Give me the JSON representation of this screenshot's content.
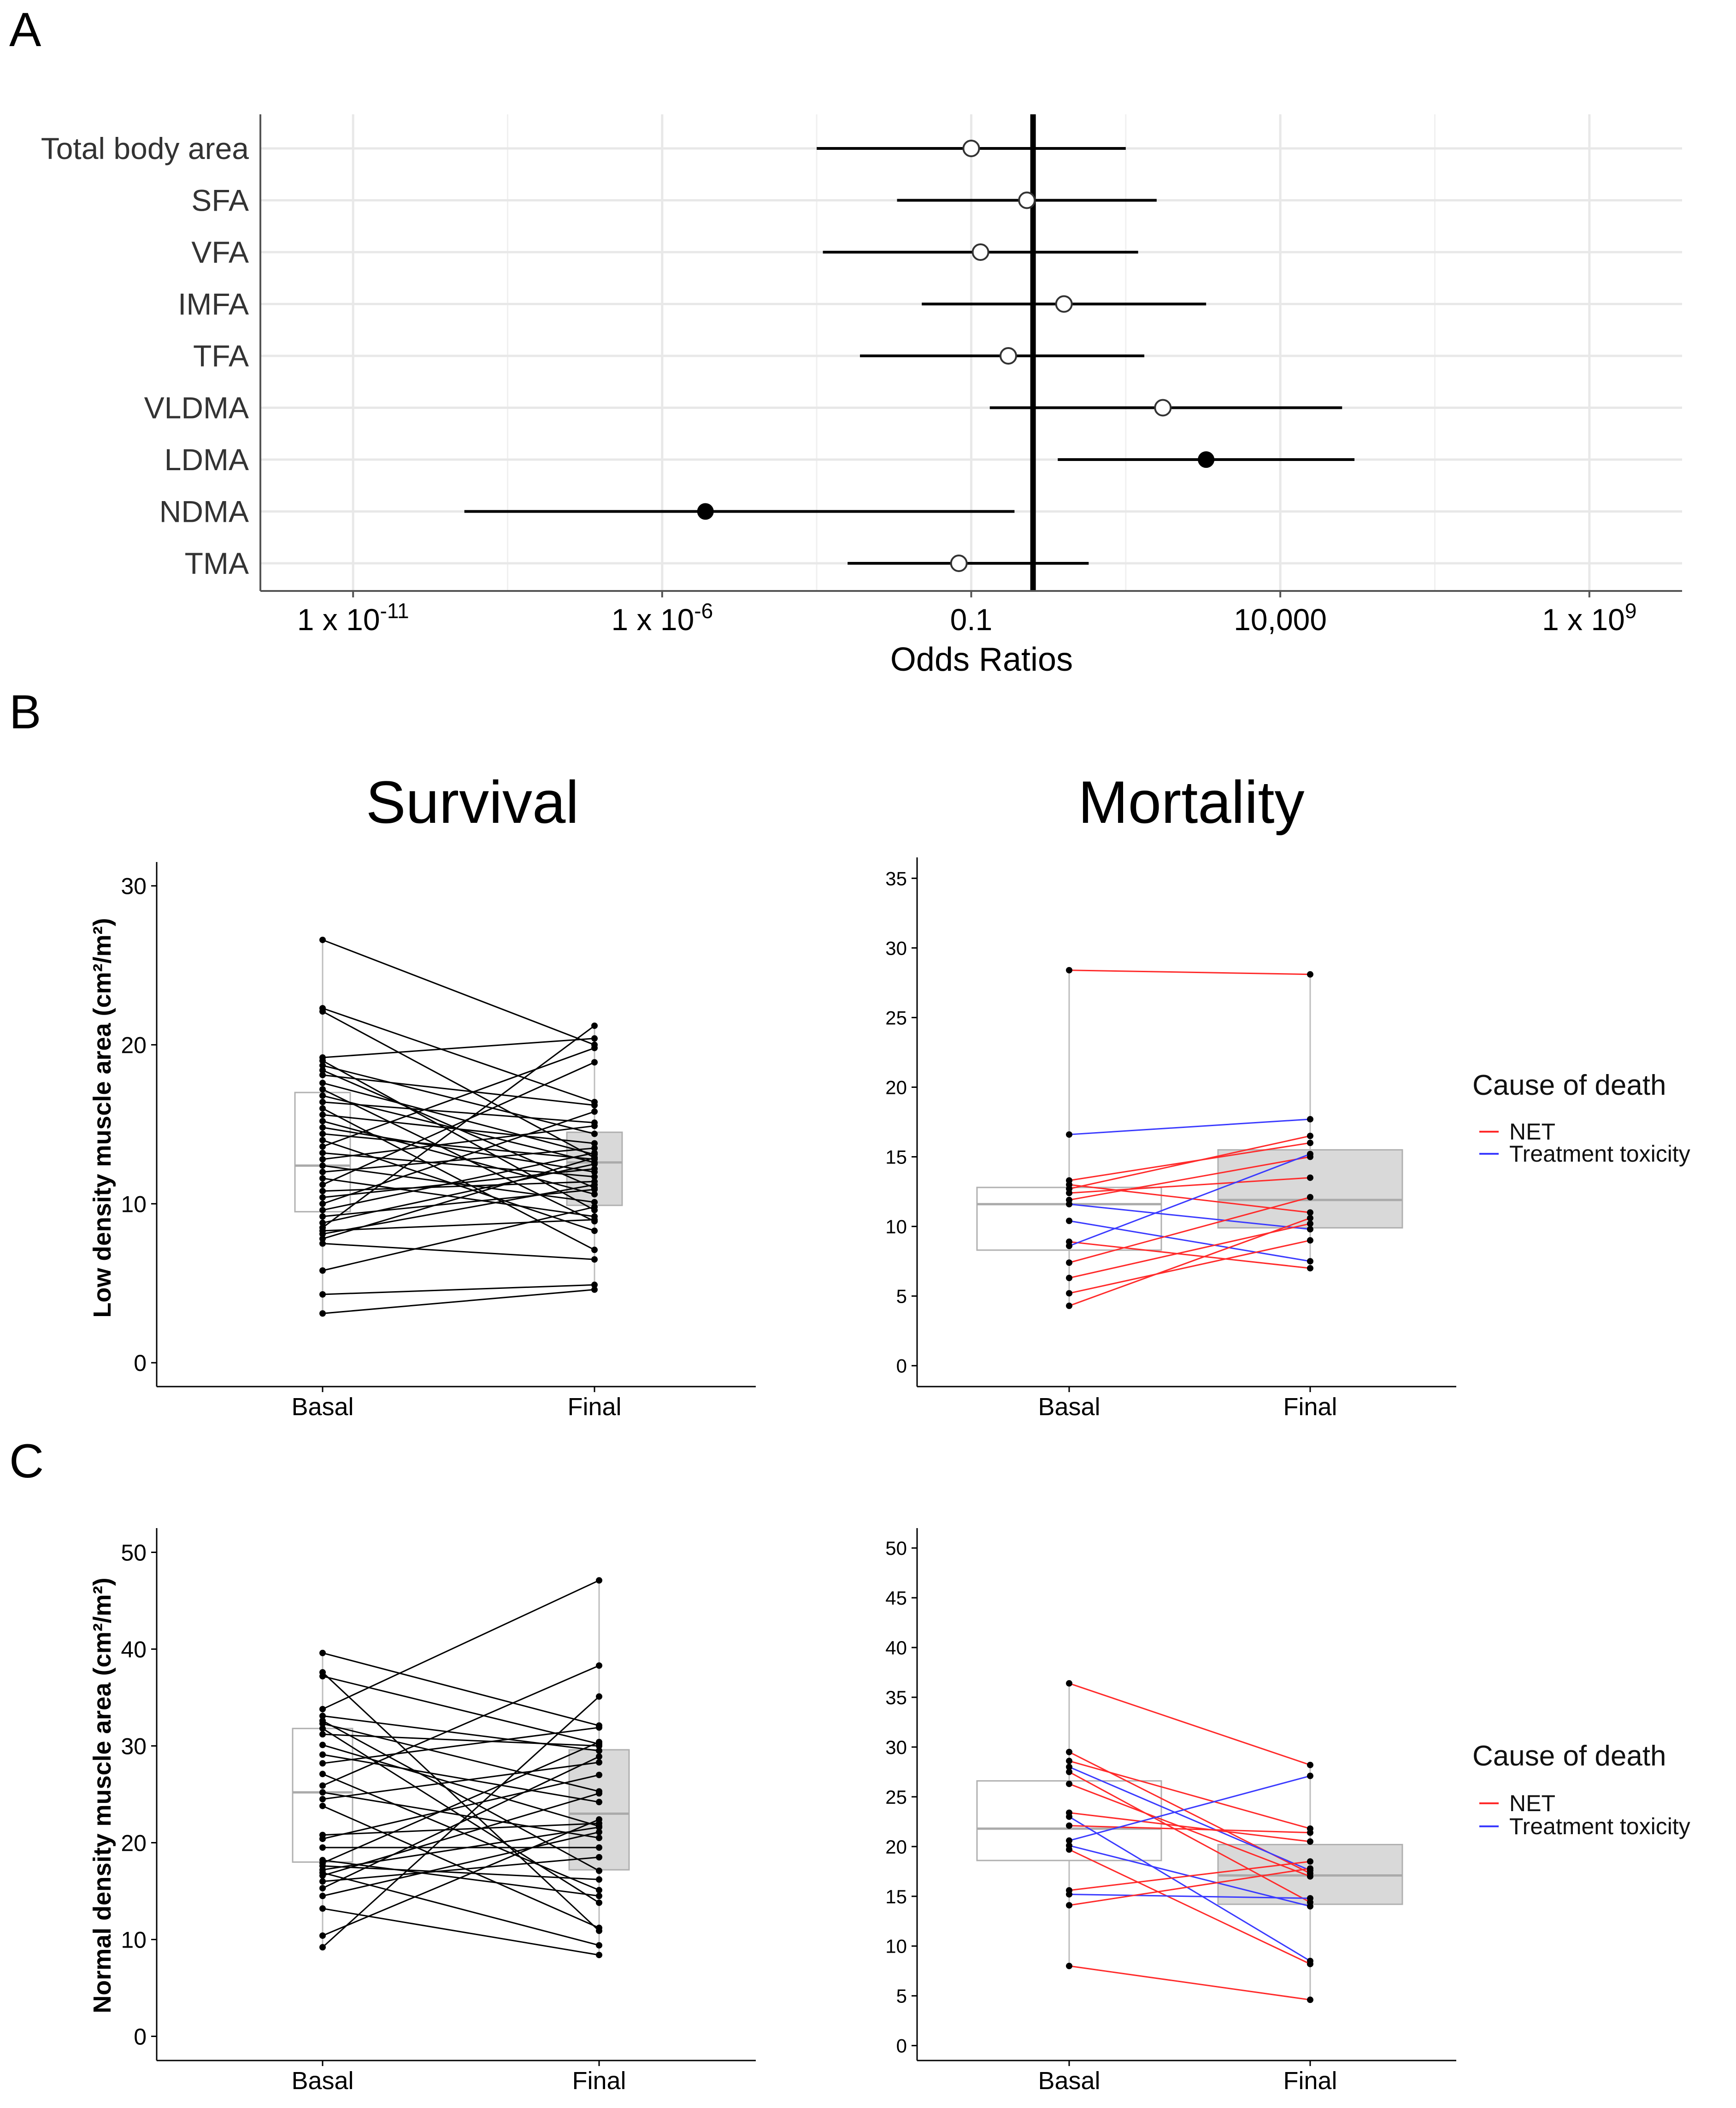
{
  "panel_labels": {
    "a": "A",
    "b": "B",
    "c": "C"
  },
  "colors": {
    "net": "#ff2a2a",
    "treatment_toxicity": "#3a3aff",
    "black": "#000000",
    "box_fill_final": "#d9d9d9",
    "grid": "#e8e8e8"
  },
  "legend": {
    "title": "Cause of death",
    "items": [
      "NET",
      "Treatment toxicity"
    ]
  },
  "titles": {
    "survival": "Survival",
    "mortality": "Mortality"
  },
  "chart_data": [
    {
      "id": "A",
      "type": "forest",
      "xlabel": "Odds Ratios",
      "xscale": "log10",
      "xlim_log10": [
        -12.5,
        10.5
      ],
      "xticks": [
        {
          "log10": -11,
          "base": "1 x 10",
          "exp": "-11"
        },
        {
          "log10": -6,
          "base": "1 x 10",
          "exp": "-6"
        },
        {
          "log10": -1,
          "base": "0.1",
          "exp": ""
        },
        {
          "log10": 4,
          "base": "10,000",
          "exp": ""
        },
        {
          "log10": 9,
          "base": "1 x 10",
          "exp": "9"
        }
      ],
      "reference_line_log10": 0,
      "rows": [
        {
          "label": "Total body area",
          "or_log10": -1.0,
          "lo_log10": -3.5,
          "hi_log10": 1.5,
          "significant": false
        },
        {
          "label": "SFA",
          "or_log10": -0.1,
          "lo_log10": -2.2,
          "hi_log10": 2.0,
          "significant": false
        },
        {
          "label": "VFA",
          "or_log10": -0.85,
          "lo_log10": -3.4,
          "hi_log10": 1.7,
          "significant": false
        },
        {
          "label": "IMFA",
          "or_log10": 0.5,
          "lo_log10": -1.8,
          "hi_log10": 2.8,
          "significant": false
        },
        {
          "label": "TFA",
          "or_log10": -0.4,
          "lo_log10": -2.8,
          "hi_log10": 1.8,
          "significant": false
        },
        {
          "label": "VLDMA",
          "or_log10": 2.1,
          "lo_log10": -0.7,
          "hi_log10": 5.0,
          "significant": false
        },
        {
          "label": "LDMA",
          "or_log10": 2.8,
          "lo_log10": 0.4,
          "hi_log10": 5.2,
          "significant": true
        },
        {
          "label": "NDMA",
          "or_log10": -5.3,
          "lo_log10": -9.2,
          "hi_log10": -0.3,
          "significant": true
        },
        {
          "label": "TMA",
          "or_log10": -1.2,
          "lo_log10": -3.0,
          "hi_log10": 0.9,
          "significant": false
        }
      ]
    },
    {
      "id": "B-survival",
      "type": "paired-box",
      "title": "Survival",
      "ylabel": "Low density muscle area (cm²/m²)",
      "categories": [
        "Basal",
        "Final"
      ],
      "ylim": [
        -1.5,
        31.5
      ],
      "yticks": [
        0,
        10,
        20,
        30
      ],
      "boxes": [
        {
          "q1": 9.5,
          "median": 12.4,
          "q3": 17.0,
          "min": 3.1,
          "max": 26.6
        },
        {
          "q1": 9.9,
          "median": 12.6,
          "q3": 14.5,
          "min": 4.6,
          "max": 21.2
        }
      ],
      "pairs": [
        [
          26.6,
          20.0
        ],
        [
          22.3,
          16.4
        ],
        [
          22.1,
          12.9
        ],
        [
          19.2,
          20.4
        ],
        [
          19.0,
          9.6
        ],
        [
          18.7,
          14.4
        ],
        [
          18.4,
          11.0
        ],
        [
          18.1,
          16.2
        ],
        [
          17.6,
          13.1
        ],
        [
          17.2,
          8.9
        ],
        [
          16.8,
          12.6
        ],
        [
          16.4,
          15.1
        ],
        [
          16.0,
          7.1
        ],
        [
          15.6,
          13.8
        ],
        [
          15.2,
          10.6
        ],
        [
          14.8,
          12.0
        ],
        [
          14.4,
          12.8
        ],
        [
          14.0,
          8.3
        ],
        [
          13.6,
          19.8
        ],
        [
          13.2,
          11.7
        ],
        [
          12.8,
          14.9
        ],
        [
          12.4,
          10.1
        ],
        [
          12.0,
          13.5
        ],
        [
          11.6,
          9.2
        ],
        [
          11.2,
          18.9
        ],
        [
          10.8,
          11.4
        ],
        [
          10.4,
          12.2
        ],
        [
          10.0,
          15.8
        ],
        [
          9.6,
          13.2
        ],
        [
          9.2,
          10.9
        ],
        [
          8.8,
          12.5
        ],
        [
          8.5,
          21.2
        ],
        [
          8.3,
          9.0
        ],
        [
          8.1,
          11.2
        ],
        [
          7.8,
          12.9
        ],
        [
          7.5,
          6.5
        ],
        [
          5.8,
          9.8
        ],
        [
          4.3,
          4.9
        ],
        [
          3.1,
          4.6
        ]
      ]
    },
    {
      "id": "B-mortality",
      "type": "paired-box",
      "title": "Mortality",
      "categories": [
        "Basal",
        "Final"
      ],
      "ylim": [
        -1.5,
        36.5
      ],
      "yticks": [
        0,
        5,
        10,
        15,
        20,
        25,
        30,
        35
      ],
      "boxes": [
        {
          "q1": 8.3,
          "median": 11.6,
          "q3": 12.8,
          "min": 4.3,
          "max": 28.4
        },
        {
          "q1": 9.9,
          "median": 11.9,
          "q3": 15.5,
          "min": 7.0,
          "max": 28.1
        }
      ],
      "pairs": [
        {
          "basal": 28.4,
          "final": 28.1,
          "cause": "NET"
        },
        {
          "basal": 16.6,
          "final": 17.7,
          "cause": "Treatment toxicity"
        },
        {
          "basal": 13.3,
          "final": 16.0,
          "cause": "NET"
        },
        {
          "basal": 13.0,
          "final": 11.0,
          "cause": "NET"
        },
        {
          "basal": 12.7,
          "final": 16.5,
          "cause": "NET"
        },
        {
          "basal": 12.4,
          "final": 13.5,
          "cause": "NET"
        },
        {
          "basal": 11.9,
          "final": 15.0,
          "cause": "NET"
        },
        {
          "basal": 11.6,
          "final": 9.8,
          "cause": "Treatment toxicity"
        },
        {
          "basal": 10.4,
          "final": 7.5,
          "cause": "Treatment toxicity"
        },
        {
          "basal": 8.9,
          "final": 7.0,
          "cause": "NET"
        },
        {
          "basal": 8.6,
          "final": 15.2,
          "cause": "Treatment toxicity"
        },
        {
          "basal": 7.4,
          "final": 12.1,
          "cause": "NET"
        },
        {
          "basal": 6.3,
          "final": 10.2,
          "cause": "NET"
        },
        {
          "basal": 5.2,
          "final": 9.0,
          "cause": "NET"
        },
        {
          "basal": 4.3,
          "final": 10.6,
          "cause": "NET"
        }
      ]
    },
    {
      "id": "C-survival",
      "type": "paired-box",
      "ylabel": "Normal density muscle area (cm²/m²)",
      "categories": [
        "Basal",
        "Final"
      ],
      "ylim": [
        -2.5,
        52.5
      ],
      "yticks": [
        0,
        10,
        20,
        30,
        40,
        50
      ],
      "boxes": [
        {
          "q1": 18.0,
          "median": 25.2,
          "q3": 31.8,
          "min": 9.2,
          "max": 39.6
        },
        {
          "q1": 17.2,
          "median": 23.0,
          "q3": 29.6,
          "min": 8.4,
          "max": 47.1
        }
      ],
      "pairs": [
        [
          39.6,
          32.1
        ],
        [
          37.6,
          10.9
        ],
        [
          37.2,
          30.2
        ],
        [
          33.8,
          47.1
        ],
        [
          33.1,
          29.5
        ],
        [
          32.6,
          17.1
        ],
        [
          32.3,
          25.3
        ],
        [
          31.8,
          13.8
        ],
        [
          31.2,
          30.0
        ],
        [
          30.1,
          21.7
        ],
        [
          29.1,
          24.2
        ],
        [
          28.2,
          31.9
        ],
        [
          27.1,
          15.1
        ],
        [
          25.9,
          38.3
        ],
        [
          25.2,
          20.5
        ],
        [
          24.5,
          28.3
        ],
        [
          23.8,
          11.2
        ],
        [
          20.8,
          22.0
        ],
        [
          20.4,
          27.0
        ],
        [
          19.5,
          19.5
        ],
        [
          18.2,
          14.5
        ],
        [
          17.9,
          30.4
        ],
        [
          17.6,
          16.2
        ],
        [
          17.2,
          21.6
        ],
        [
          16.9,
          9.4
        ],
        [
          16.6,
          25.1
        ],
        [
          16.0,
          18.5
        ],
        [
          15.3,
          28.9
        ],
        [
          14.5,
          21.1
        ],
        [
          13.2,
          8.4
        ],
        [
          10.4,
          22.4
        ],
        [
          9.2,
          35.1
        ]
      ]
    },
    {
      "id": "C-mortality",
      "type": "paired-box",
      "categories": [
        "Basal",
        "Final"
      ],
      "ylim": [
        -1.5,
        52.0
      ],
      "yticks": [
        0,
        5,
        10,
        15,
        20,
        25,
        30,
        35,
        40,
        45,
        50
      ],
      "boxes": [
        {
          "q1": 18.6,
          "median": 21.8,
          "q3": 26.6,
          "min": 8.0,
          "max": 36.4
        },
        {
          "q1": 14.2,
          "median": 17.1,
          "q3": 20.2,
          "min": 4.6,
          "max": 28.2
        }
      ],
      "pairs": [
        {
          "basal": 36.4,
          "final": 28.2,
          "cause": "NET"
        },
        {
          "basal": 29.5,
          "final": 17.3,
          "cause": "NET"
        },
        {
          "basal": 28.6,
          "final": 21.8,
          "cause": "NET"
        },
        {
          "basal": 28.0,
          "final": 17.6,
          "cause": "Treatment toxicity"
        },
        {
          "basal": 27.5,
          "final": 14.4,
          "cause": "NET"
        },
        {
          "basal": 26.3,
          "final": 17.0,
          "cause": "NET"
        },
        {
          "basal": 23.4,
          "final": 20.5,
          "cause": "NET"
        },
        {
          "basal": 23.0,
          "final": 8.5,
          "cause": "Treatment toxicity"
        },
        {
          "basal": 22.1,
          "final": 21.4,
          "cause": "NET"
        },
        {
          "basal": 20.6,
          "final": 27.1,
          "cause": "Treatment toxicity"
        },
        {
          "basal": 20.1,
          "final": 14.0,
          "cause": "Treatment toxicity"
        },
        {
          "basal": 19.7,
          "final": 8.2,
          "cause": "NET"
        },
        {
          "basal": 15.6,
          "final": 18.5,
          "cause": "NET"
        },
        {
          "basal": 15.2,
          "final": 14.8,
          "cause": "Treatment toxicity"
        },
        {
          "basal": 14.1,
          "final": 17.8,
          "cause": "NET"
        },
        {
          "basal": 8.0,
          "final": 4.6,
          "cause": "NET"
        }
      ]
    }
  ]
}
